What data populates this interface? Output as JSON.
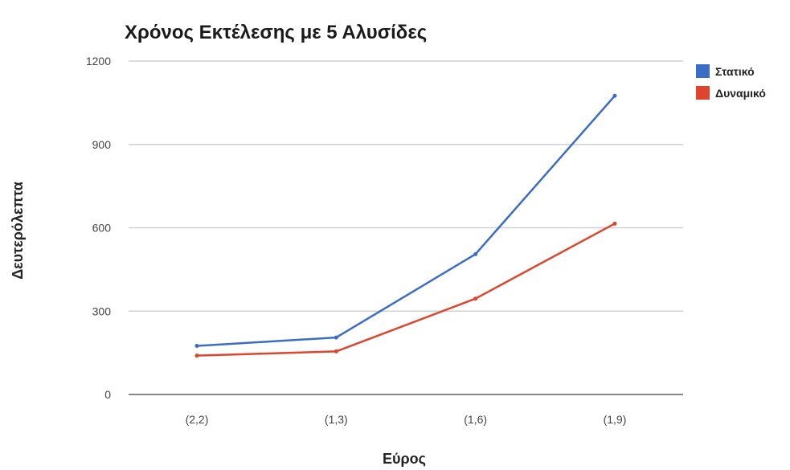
{
  "chart_data": {
    "type": "line",
    "title": "Χρόνος Εκτέλεσης με 5 Αλυσίδες",
    "xlabel": "Εύρος",
    "ylabel": "Δευτερόλεπτα",
    "categories": [
      "(2,2)",
      "(1,3)",
      "(1,6)",
      "(1,9)"
    ],
    "ylim": [
      0,
      1200
    ],
    "yticks": [
      0,
      300,
      600,
      900,
      1200
    ],
    "grid": true,
    "legend_position": "top-right",
    "series": [
      {
        "name": "Στατικό",
        "color": "#3b6cc7",
        "values": [
          175,
          205,
          505,
          1075
        ]
      },
      {
        "name": "Δυναμικό",
        "color": "#e0442c",
        "values": [
          140,
          155,
          345,
          615
        ]
      }
    ]
  }
}
